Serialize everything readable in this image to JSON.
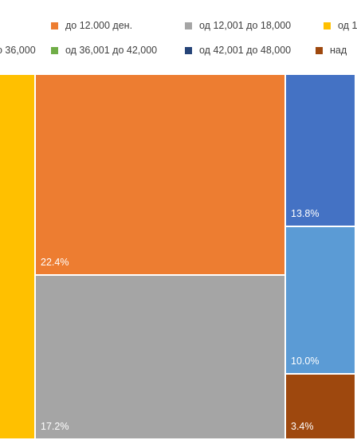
{
  "chart_data": {
    "type": "treemap",
    "legend_position": "top",
    "series": [
      {
        "name": "до 12.000 ден.",
        "value": 22.4,
        "label": "22.4%",
        "color": "#ED7D31"
      },
      {
        "name": "од 12,001 до 18,000",
        "value": 17.2,
        "label": "17.2%",
        "color": "#A5A5A5"
      },
      {
        "name": "од 1",
        "value": null,
        "label": "",
        "color": "#FFC000"
      },
      {
        "name": "о 36,000",
        "value": null,
        "label": "",
        "color": "#4472C4"
      },
      {
        "name": "од 36,001 до 42,000",
        "value": null,
        "label": "",
        "color": "#70AD47"
      },
      {
        "name": "од 42,001 до 48,000",
        "value": null,
        "label": "",
        "color": "#264478"
      },
      {
        "name": "над",
        "value": 3.4,
        "label": "3.4%",
        "color": "#9E480E"
      },
      {
        "name": "",
        "value": 13.8,
        "label": "13.8%",
        "color": "#4472C4"
      },
      {
        "name": "",
        "value": 10.0,
        "label": "10.0%",
        "color": "#5B9BD5"
      }
    ]
  }
}
